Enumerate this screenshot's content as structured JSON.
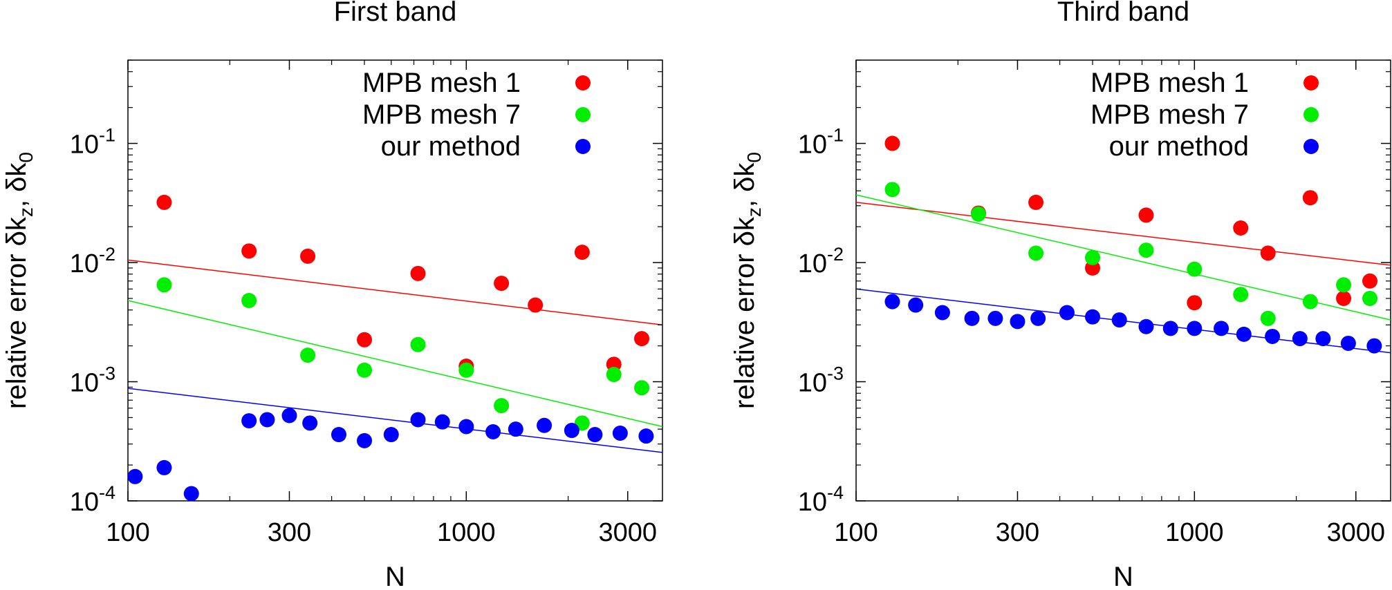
{
  "chart_data": [
    {
      "type": "scatter",
      "title": "First band",
      "xlabel": "N",
      "ylabel_main": "relative error δk",
      "ylabel_sub1": "z",
      "ylabel_mid": ", δk",
      "ylabel_sub2": "0",
      "xscale": "log",
      "yscale": "log",
      "xlim": [
        100,
        3800
      ],
      "ylim": [
        0.0001,
        0.5
      ],
      "xticks": [
        {
          "value": 100,
          "label": "100"
        },
        {
          "value": 300,
          "label": "300"
        },
        {
          "value": 1000,
          "label": "1000"
        },
        {
          "value": 3000,
          "label": "3000"
        }
      ],
      "yticks": [
        {
          "value": 0.0001,
          "base": "10",
          "exp": "-4"
        },
        {
          "value": 0.001,
          "base": "10",
          "exp": "-3"
        },
        {
          "value": 0.01,
          "base": "10",
          "exp": "-2"
        },
        {
          "value": 0.1,
          "base": "10",
          "exp": "-1"
        }
      ],
      "legend_position": "top-right",
      "series": [
        {
          "name": "MPB mesh 1",
          "color": "#ff0000",
          "points": [
            [
              128,
              0.032
            ],
            [
              228,
              0.0125
            ],
            [
              340,
              0.0113
            ],
            [
              500,
              0.00225
            ],
            [
              720,
              0.0081
            ],
            [
              1000,
              0.00135
            ],
            [
              1270,
              0.0067
            ],
            [
              1600,
              0.0044
            ],
            [
              2200,
              0.0122
            ],
            [
              2730,
              0.0014
            ],
            [
              3300,
              0.0023
            ]
          ],
          "fit": [
            [
              100,
              0.0105
            ],
            [
              3800,
              0.003
            ]
          ]
        },
        {
          "name": "MPB mesh 7",
          "color": "#00ee00",
          "points": [
            [
              128,
              0.0065
            ],
            [
              228,
              0.0048
            ],
            [
              340,
              0.00167
            ],
            [
              500,
              0.00125
            ],
            [
              720,
              0.00205
            ],
            [
              1000,
              0.00125
            ],
            [
              1270,
              0.00063
            ],
            [
              2200,
              0.00045
            ],
            [
              2730,
              0.00115
            ],
            [
              3300,
              0.00089
            ]
          ],
          "fit": [
            [
              100,
              0.0048
            ],
            [
              3800,
              0.00042
            ]
          ]
        },
        {
          "name": "our method",
          "color": "#0000ff",
          "points": [
            [
              105,
              0.00016
            ],
            [
              128,
              0.00019
            ],
            [
              154,
              0.000115
            ],
            [
              228,
              0.00047
            ],
            [
              258,
              0.00048
            ],
            [
              300,
              0.00052
            ],
            [
              345,
              0.00045
            ],
            [
              420,
              0.00036
            ],
            [
              500,
              0.00032
            ],
            [
              600,
              0.00036
            ],
            [
              720,
              0.00048
            ],
            [
              850,
              0.00046
            ],
            [
              1000,
              0.00042
            ],
            [
              1200,
              0.00038
            ],
            [
              1400,
              0.0004
            ],
            [
              1700,
              0.00043
            ],
            [
              2050,
              0.00039
            ],
            [
              2400,
              0.00036
            ],
            [
              2850,
              0.00037
            ],
            [
              3400,
              0.00035
            ]
          ],
          "fit": [
            [
              100,
              0.00088
            ],
            [
              3800,
              0.000255
            ]
          ]
        }
      ]
    },
    {
      "type": "scatter",
      "title": "Third band",
      "xlabel": "N",
      "ylabel_main": "relative error δk",
      "ylabel_sub1": "z",
      "ylabel_mid": ", δk",
      "ylabel_sub2": "0",
      "xscale": "log",
      "yscale": "log",
      "xlim": [
        100,
        3800
      ],
      "ylim": [
        0.0001,
        0.5
      ],
      "xticks": [
        {
          "value": 100,
          "label": "100"
        },
        {
          "value": 300,
          "label": "300"
        },
        {
          "value": 1000,
          "label": "1000"
        },
        {
          "value": 3000,
          "label": "3000"
        }
      ],
      "yticks": [
        {
          "value": 0.0001,
          "base": "10",
          "exp": "-4"
        },
        {
          "value": 0.001,
          "base": "10",
          "exp": "-3"
        },
        {
          "value": 0.01,
          "base": "10",
          "exp": "-2"
        },
        {
          "value": 0.1,
          "base": "10",
          "exp": "-1"
        }
      ],
      "legend_position": "top-right",
      "series": [
        {
          "name": "MPB mesh 1",
          "color": "#ff0000",
          "points": [
            [
              128,
              0.1
            ],
            [
              230,
              0.026
            ],
            [
              340,
              0.032
            ],
            [
              500,
              0.009
            ],
            [
              720,
              0.025
            ],
            [
              1000,
              0.0046
            ],
            [
              1370,
              0.0195
            ],
            [
              1650,
              0.012
            ],
            [
              2200,
              0.035
            ],
            [
              2760,
              0.005
            ],
            [
              3300,
              0.007
            ]
          ],
          "fit": [
            [
              100,
              0.032
            ],
            [
              3800,
              0.0095
            ]
          ]
        },
        {
          "name": "MPB mesh 7",
          "color": "#00ee00",
          "points": [
            [
              128,
              0.041
            ],
            [
              230,
              0.0255
            ],
            [
              340,
              0.012
            ],
            [
              500,
              0.011
            ],
            [
              720,
              0.0127
            ],
            [
              1000,
              0.0088
            ],
            [
              1370,
              0.0054
            ],
            [
              1650,
              0.0034
            ],
            [
              2200,
              0.0047
            ],
            [
              2760,
              0.0065
            ],
            [
              3300,
              0.005
            ]
          ],
          "fit": [
            [
              100,
              0.037
            ],
            [
              3800,
              0.0033
            ]
          ]
        },
        {
          "name": "our method",
          "color": "#0000ff",
          "points": [
            [
              128,
              0.0047
            ],
            [
              150,
              0.0044
            ],
            [
              180,
              0.0038
            ],
            [
              220,
              0.0034
            ],
            [
              258,
              0.0034
            ],
            [
              300,
              0.0032
            ],
            [
              345,
              0.0034
            ],
            [
              420,
              0.0038
            ],
            [
              500,
              0.0035
            ],
            [
              600,
              0.0033
            ],
            [
              720,
              0.0029
            ],
            [
              850,
              0.0028
            ],
            [
              1000,
              0.0028
            ],
            [
              1200,
              0.0028
            ],
            [
              1400,
              0.0025
            ],
            [
              1700,
              0.0024
            ],
            [
              2050,
              0.0023
            ],
            [
              2400,
              0.0023
            ],
            [
              2850,
              0.0021
            ],
            [
              3400,
              0.002
            ]
          ],
          "fit": [
            [
              100,
              0.006
            ],
            [
              3800,
              0.00175
            ]
          ]
        }
      ]
    }
  ]
}
